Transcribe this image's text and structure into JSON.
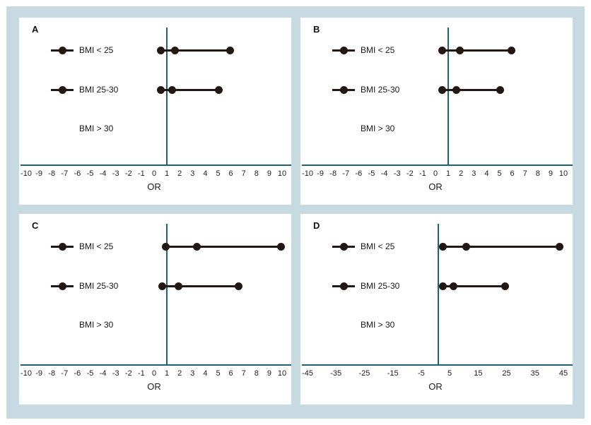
{
  "figure": {
    "background_color": "#c7d9e1",
    "panel_color": "#ffffff",
    "axis_color": "#1d6270",
    "marker_color": "#221713",
    "axis_label": "OR",
    "category_labels": [
      "BMI < 25",
      "BMI 25-30",
      "BMI > 30"
    ]
  },
  "chart_data": [
    {
      "type": "scatter",
      "panel": "A",
      "xlabel": "OR",
      "xlim": [
        -10,
        10
      ],
      "ticks": [
        -10,
        -9,
        -8,
        -7,
        -6,
        -5,
        -4,
        -3,
        -2,
        -1,
        0,
        1,
        2,
        3,
        4,
        5,
        6,
        7,
        8,
        9,
        10
      ],
      "refline_x": 1,
      "grid": false,
      "series": [
        {
          "name": "BMI < 25",
          "low": 0.5,
          "mid": 1.6,
          "high": 5.9
        },
        {
          "name": "BMI 25-30",
          "low": 0.5,
          "mid": 1.4,
          "high": 5.0
        },
        {
          "name": "BMI > 30",
          "low": null,
          "mid": null,
          "high": null
        }
      ]
    },
    {
      "type": "scatter",
      "panel": "B",
      "xlabel": "OR",
      "xlim": [
        -10,
        10
      ],
      "ticks": [
        -10,
        -9,
        -8,
        -7,
        -6,
        -5,
        -4,
        -3,
        -2,
        -1,
        0,
        1,
        2,
        3,
        4,
        5,
        6,
        7,
        8,
        9,
        10
      ],
      "refline_x": 1,
      "grid": false,
      "series": [
        {
          "name": "BMI < 25",
          "low": 0.5,
          "mid": 1.9,
          "high": 5.9
        },
        {
          "name": "BMI 25-30",
          "low": 0.5,
          "mid": 1.6,
          "high": 5.0
        },
        {
          "name": "BMI > 30",
          "low": null,
          "mid": null,
          "high": null
        }
      ]
    },
    {
      "type": "scatter",
      "panel": "C",
      "xlabel": "OR",
      "xlim": [
        -10,
        10
      ],
      "ticks": [
        -10,
        -9,
        -8,
        -7,
        -6,
        -5,
        -4,
        -3,
        -2,
        -1,
        0,
        1,
        2,
        3,
        4,
        5,
        6,
        7,
        8,
        9,
        10
      ],
      "refline_x": 1,
      "grid": false,
      "series": [
        {
          "name": "BMI < 25",
          "low": 0.9,
          "mid": 3.3,
          "high": 9.9
        },
        {
          "name": "BMI 25-30",
          "low": 0.6,
          "mid": 1.9,
          "high": 6.6
        },
        {
          "name": "BMI > 30",
          "low": null,
          "mid": null,
          "high": null
        }
      ]
    },
    {
      "type": "scatter",
      "panel": "D",
      "xlabel": "OR",
      "xlim": [
        -45,
        45
      ],
      "ticks": [
        -45,
        -35,
        -25,
        -15,
        -5,
        5,
        15,
        25,
        35,
        45
      ],
      "refline_x": 1,
      "grid": false,
      "series": [
        {
          "name": "BMI < 25",
          "low": 2.4,
          "mid": 10.7,
          "high": 43.4
        },
        {
          "name": "BMI 25-30",
          "low": 2.4,
          "mid": 6.1,
          "high": 24.4
        },
        {
          "name": "BMI > 30",
          "low": null,
          "mid": null,
          "high": null
        }
      ]
    }
  ]
}
